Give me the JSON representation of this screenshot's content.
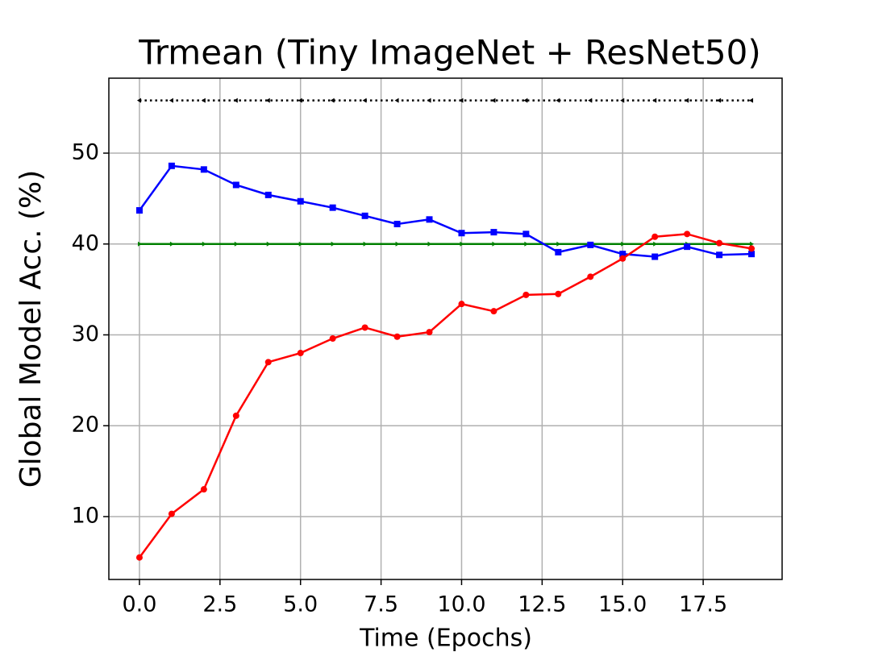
{
  "chart_data": {
    "type": "line",
    "title": "Trmean (Tiny ImageNet + ResNet50)",
    "x_label": "Time (Epochs)",
    "y_label": "Global Model Acc. (%)",
    "x": [
      0,
      1,
      2,
      3,
      4,
      5,
      6,
      7,
      8,
      9,
      10,
      11,
      12,
      13,
      14,
      15,
      16,
      17,
      18,
      19
    ],
    "series": [
      {
        "color": "#000000",
        "marker": "triangle-left",
        "dashed": true,
        "values": [
          55.8,
          55.8,
          55.8,
          55.8,
          55.8,
          55.8,
          55.8,
          55.8,
          55.8,
          55.8,
          55.8,
          55.8,
          55.8,
          55.8,
          55.8,
          55.8,
          55.8,
          55.8,
          55.8,
          55.8
        ]
      },
      {
        "color": "#008000",
        "marker": "triangle-right",
        "dashed": false,
        "values": [
          40,
          40,
          40,
          40,
          40,
          40,
          40,
          40,
          40,
          40,
          40,
          40,
          40,
          40,
          40,
          40,
          40,
          40,
          40,
          40
        ]
      },
      {
        "color": "#0000ff",
        "marker": "square",
        "dashed": false,
        "values": [
          43.7,
          48.6,
          48.2,
          46.5,
          45.4,
          44.7,
          44.0,
          43.1,
          42.2,
          42.7,
          41.2,
          41.3,
          41.1,
          39.1,
          39.9,
          38.9,
          38.6,
          39.7,
          38.8,
          38.9
        ]
      },
      {
        "color": "#ff0000",
        "marker": "circle",
        "dashed": false,
        "values": [
          5.5,
          10.3,
          13.0,
          21.1,
          27.0,
          28.0,
          29.6,
          30.8,
          29.8,
          30.3,
          33.4,
          32.6,
          34.4,
          34.5,
          36.4,
          38.4,
          40.8,
          41.1,
          40.1,
          39.5
        ]
      }
    ],
    "xlim": [
      -0.95,
      19.95
    ],
    "ylim": [
      3.08,
      58.25
    ],
    "xticks": [
      {
        "value": 0,
        "label": "0.0"
      },
      {
        "value": 2.5,
        "label": "2.5"
      },
      {
        "value": 5,
        "label": "5.0"
      },
      {
        "value": 7.5,
        "label": "7.5"
      },
      {
        "value": 10,
        "label": "10.0"
      },
      {
        "value": 12.5,
        "label": "12.5"
      },
      {
        "value": 15,
        "label": "15.0"
      },
      {
        "value": 17.5,
        "label": "17.5"
      }
    ],
    "yticks": [
      10,
      20,
      30,
      40,
      50
    ],
    "grid": true
  }
}
